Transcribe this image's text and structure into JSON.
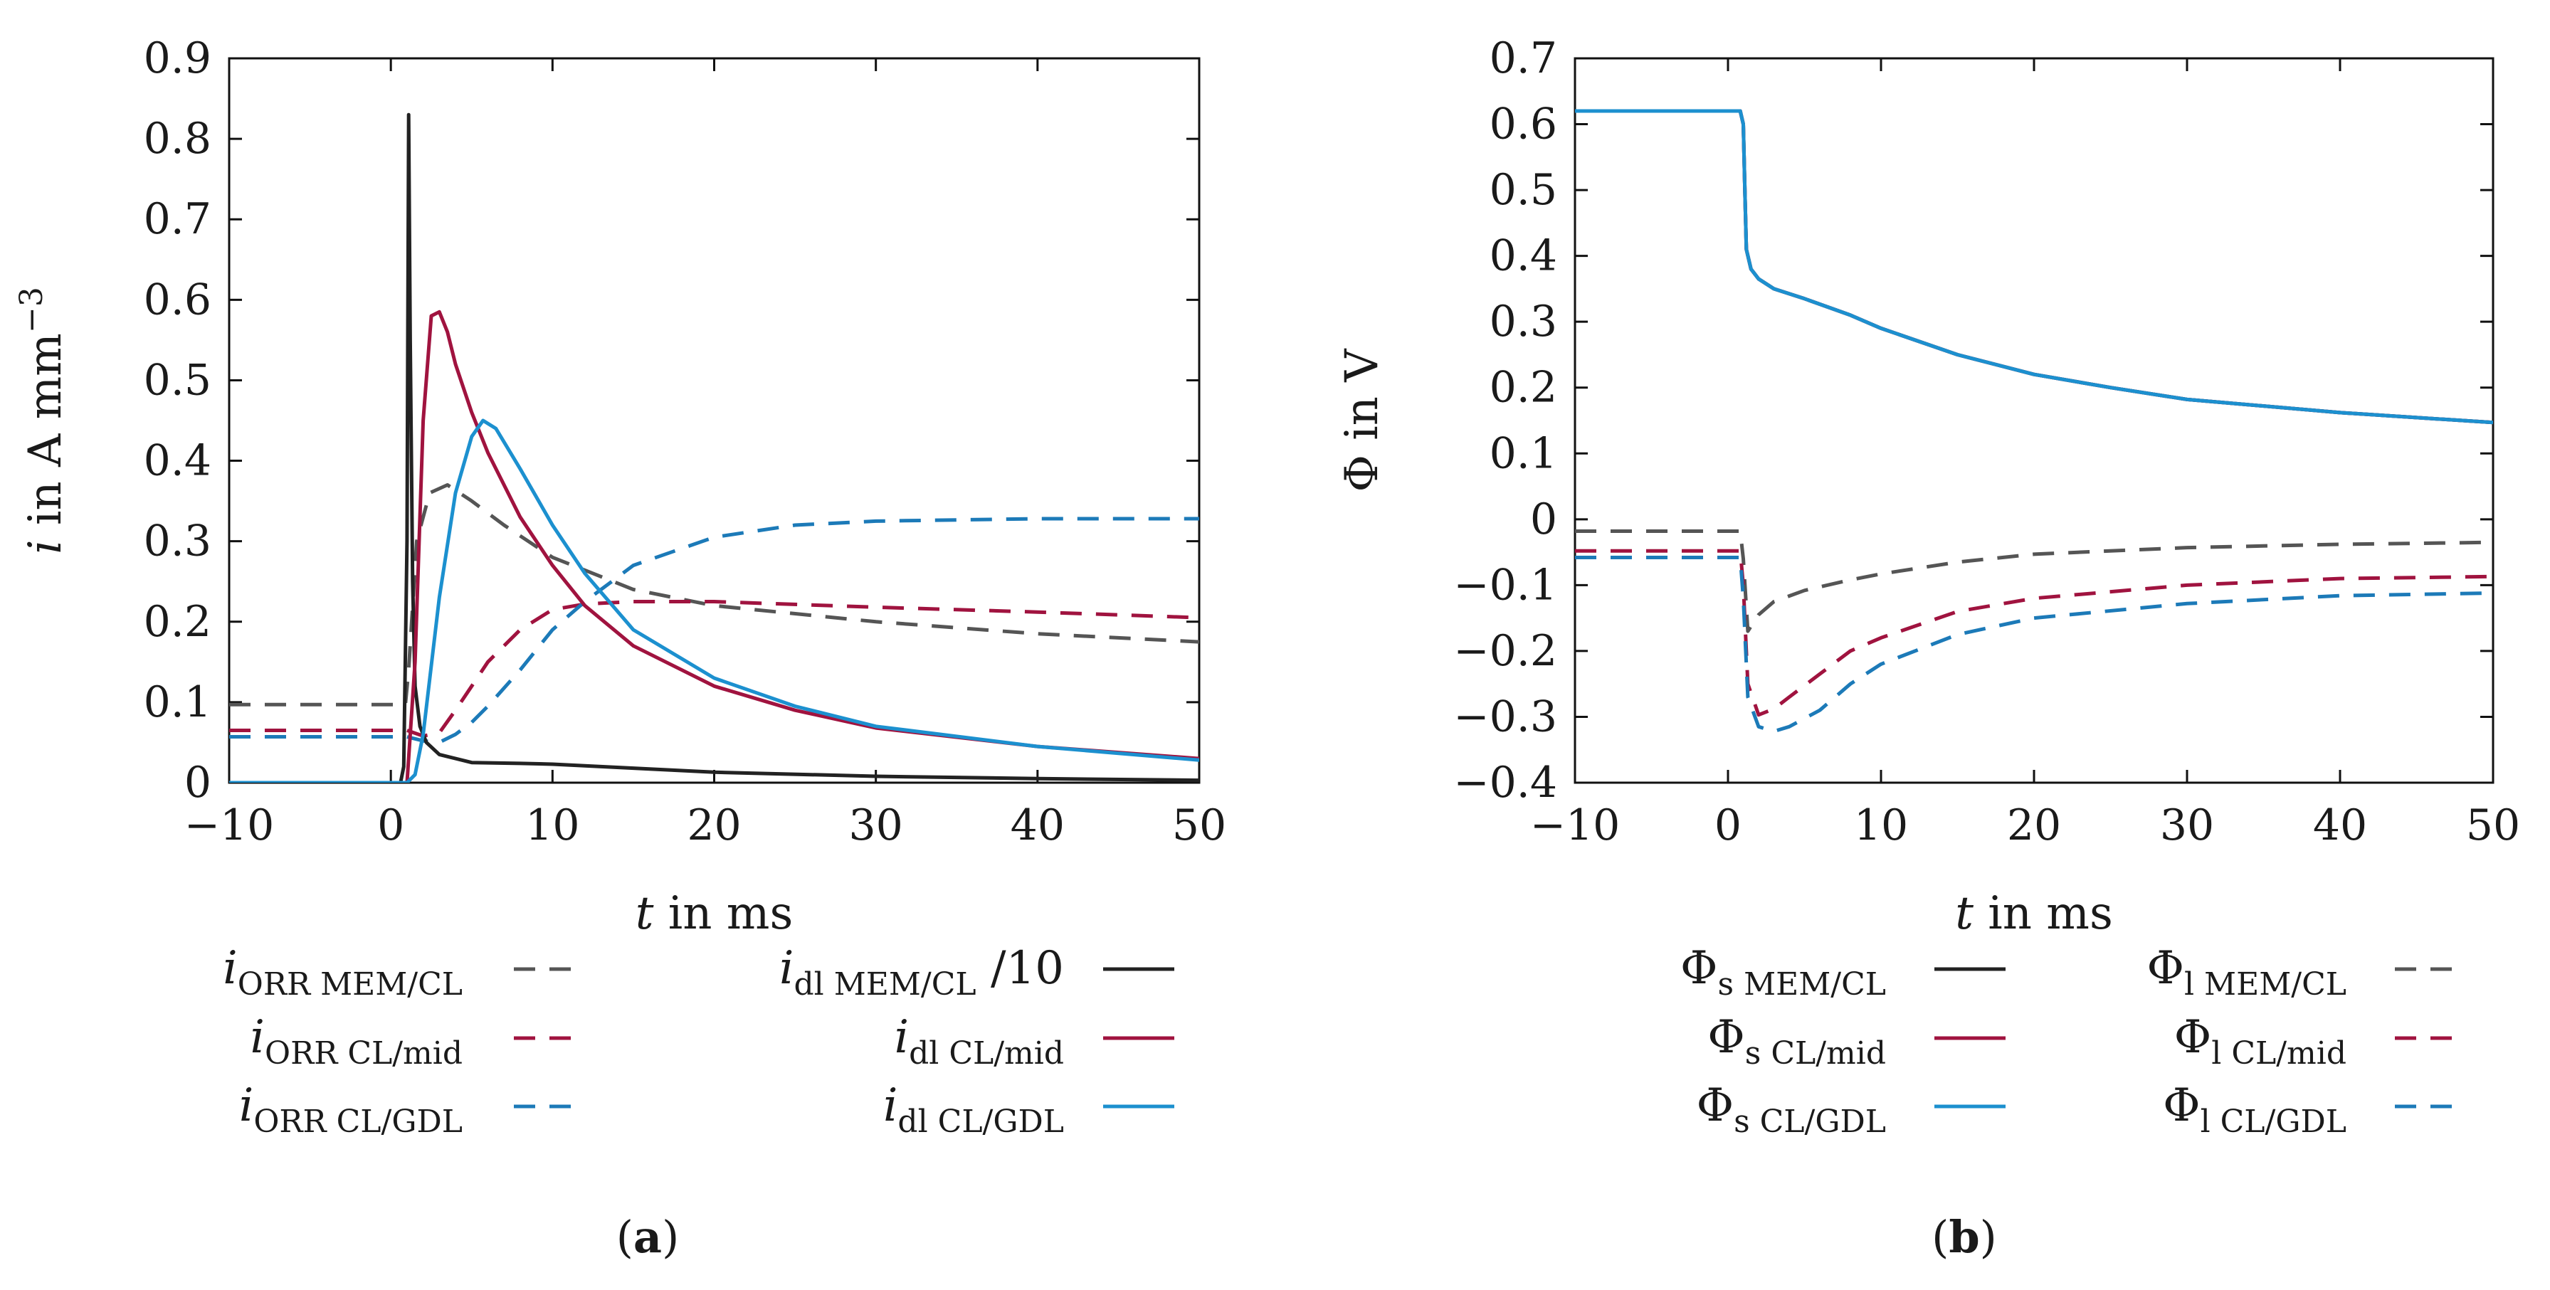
{
  "chart_data": [
    {
      "panel": "a",
      "caption": "(a)",
      "type": "line",
      "xlabel": {
        "var": "t",
        "rest": " in ms"
      },
      "ylabel": {
        "var": "i",
        "rest": " in A mm",
        "sup": "−3"
      },
      "xlim": [
        -10,
        50
      ],
      "ylim": [
        0,
        0.9
      ],
      "xticks": [
        "−10",
        "0",
        "10",
        "20",
        "30",
        "40",
        "50"
      ],
      "xtick_values": [
        -10,
        0,
        10,
        20,
        30,
        40,
        50
      ],
      "yticks": [
        "0",
        "0.1",
        "0.2",
        "0.3",
        "0.4",
        "0.5",
        "0.6",
        "0.7",
        "0.8",
        "0.9"
      ],
      "ytick_values": [
        0,
        0.1,
        0.2,
        0.3,
        0.4,
        0.5,
        0.6,
        0.7,
        0.8,
        0.9
      ],
      "series": [
        {
          "label": {
            "main": "i",
            "sub": "ORR MEM/CL",
            "suffix": ""
          },
          "color": "#555555",
          "dash": "dashed",
          "x": [
            -10,
            0,
            0.9,
            1.1,
            1.6,
            2.4,
            3.5,
            5,
            7,
            10,
            15,
            20,
            30,
            40,
            50
          ],
          "y": [
            0.097,
            0.097,
            0.097,
            0.14,
            0.3,
            0.36,
            0.37,
            0.35,
            0.32,
            0.28,
            0.24,
            0.22,
            0.2,
            0.185,
            0.175
          ]
        },
        {
          "label": {
            "main": "i",
            "sub": "ORR CL/mid",
            "suffix": ""
          },
          "color": "#a0133f",
          "dash": "dashed",
          "x": [
            -10,
            0,
            1,
            2,
            3,
            4,
            5,
            6,
            8,
            10,
            12,
            15,
            20,
            30,
            40,
            50
          ],
          "y": [
            0.065,
            0.065,
            0.065,
            0.058,
            0.062,
            0.09,
            0.12,
            0.15,
            0.19,
            0.215,
            0.222,
            0.225,
            0.225,
            0.218,
            0.212,
            0.205
          ]
        },
        {
          "label": {
            "main": "i",
            "sub": "ORR CL/GDL",
            "suffix": ""
          },
          "color": "#1c7ab8",
          "dash": "dashed",
          "x": [
            -10,
            0,
            1,
            2,
            3,
            4,
            5,
            6,
            8,
            10,
            12,
            15,
            20,
            25,
            30,
            40,
            50
          ],
          "y": [
            0.057,
            0.057,
            0.057,
            0.052,
            0.05,
            0.06,
            0.075,
            0.095,
            0.14,
            0.19,
            0.225,
            0.27,
            0.305,
            0.32,
            0.325,
            0.328,
            0.328
          ]
        },
        {
          "label": {
            "main": "i",
            "sub": "dl MEM/CL",
            "suffix": " /10"
          },
          "color": "#222222",
          "dash": "solid",
          "x": [
            -10,
            0.6,
            0.8,
            1.0,
            1.1,
            1.2,
            1.35,
            1.5,
            1.8,
            2.2,
            3,
            5,
            8,
            10,
            15,
            20,
            30,
            40,
            50
          ],
          "y": [
            0,
            0,
            0.02,
            0.3,
            0.83,
            0.55,
            0.25,
            0.12,
            0.07,
            0.05,
            0.035,
            0.025,
            0.024,
            0.023,
            0.018,
            0.013,
            0.008,
            0.005,
            0.003
          ]
        },
        {
          "label": {
            "main": "i",
            "sub": "dl CL/mid",
            "suffix": ""
          },
          "color": "#a0133f",
          "dash": "solid",
          "x": [
            -10,
            1,
            1.5,
            2,
            2.5,
            3,
            3.5,
            4,
            5,
            6,
            8,
            10,
            12,
            15,
            20,
            25,
            30,
            40,
            50
          ],
          "y": [
            0,
            0,
            0.15,
            0.45,
            0.58,
            0.585,
            0.56,
            0.52,
            0.46,
            0.41,
            0.33,
            0.27,
            0.22,
            0.17,
            0.12,
            0.09,
            0.068,
            0.045,
            0.03
          ]
        },
        {
          "label": {
            "main": "i",
            "sub": "dl CL/GDL",
            "suffix": ""
          },
          "color": "#1c90cf",
          "dash": "solid",
          "x": [
            -10,
            1,
            1.5,
            2,
            3,
            4,
            5,
            5.7,
            6.5,
            8,
            10,
            12,
            15,
            20,
            25,
            30,
            40,
            50
          ],
          "y": [
            0,
            0,
            0.01,
            0.06,
            0.23,
            0.36,
            0.43,
            0.45,
            0.44,
            0.39,
            0.32,
            0.26,
            0.19,
            0.13,
            0.095,
            0.07,
            0.045,
            0.028
          ]
        }
      ]
    },
    {
      "panel": "b",
      "caption": "(b)",
      "type": "line",
      "xlabel": {
        "var": "t",
        "rest": " in ms"
      },
      "ylabel": {
        "var": "Φ",
        "rest": " in V",
        "sup": ""
      },
      "xlim": [
        -10,
        50
      ],
      "ylim": [
        -0.4,
        0.7
      ],
      "xticks": [
        "−10",
        "0",
        "10",
        "20",
        "30",
        "40",
        "50"
      ],
      "xtick_values": [
        -10,
        0,
        10,
        20,
        30,
        40,
        50
      ],
      "yticks": [
        "−0.4",
        "−0.3",
        "−0.2",
        "−0.1",
        "0",
        "0.1",
        "0.2",
        "0.3",
        "0.4",
        "0.5",
        "0.6",
        "0.7"
      ],
      "ytick_values": [
        -0.4,
        -0.3,
        -0.2,
        -0.1,
        0,
        0.1,
        0.2,
        0.3,
        0.4,
        0.5,
        0.6,
        0.7
      ],
      "series": [
        {
          "label": {
            "main": "Φ",
            "sub": "s MEM/CL",
            "suffix": ""
          },
          "color": "#222222",
          "dash": "solid",
          "x": [
            -10,
            0.8,
            1.0,
            1.1,
            1.2,
            1.5,
            2,
            3,
            5,
            8,
            10,
            15,
            20,
            25,
            30,
            40,
            50
          ],
          "y": [
            0.62,
            0.62,
            0.6,
            0.5,
            0.41,
            0.38,
            0.365,
            0.35,
            0.335,
            0.31,
            0.29,
            0.25,
            0.22,
            0.2,
            0.182,
            0.162,
            0.147
          ]
        },
        {
          "label": {
            "main": "Φ",
            "sub": "s CL/mid",
            "suffix": ""
          },
          "color": "#a0133f",
          "dash": "solid",
          "x": [
            -10,
            0.8,
            1.0,
            1.1,
            1.2,
            1.5,
            2,
            3,
            5,
            8,
            10,
            15,
            20,
            25,
            30,
            40,
            50
          ],
          "y": [
            0.62,
            0.62,
            0.6,
            0.5,
            0.41,
            0.38,
            0.365,
            0.35,
            0.335,
            0.31,
            0.29,
            0.25,
            0.22,
            0.2,
            0.182,
            0.162,
            0.147
          ]
        },
        {
          "label": {
            "main": "Φ",
            "sub": "s CL/GDL",
            "suffix": ""
          },
          "color": "#1c90cf",
          "dash": "solid",
          "x": [
            -10,
            0.8,
            1.0,
            1.1,
            1.2,
            1.5,
            2,
            3,
            5,
            8,
            10,
            15,
            20,
            25,
            30,
            40,
            50
          ],
          "y": [
            0.62,
            0.62,
            0.6,
            0.5,
            0.41,
            0.38,
            0.365,
            0.35,
            0.335,
            0.31,
            0.29,
            0.25,
            0.22,
            0.2,
            0.182,
            0.162,
            0.147
          ]
        },
        {
          "label": {
            "main": "Φ",
            "sub": "l MEM/CL",
            "suffix": ""
          },
          "color": "#555555",
          "dash": "dashed",
          "x": [
            -10,
            0.8,
            1.0,
            1.3,
            2,
            3,
            5,
            8,
            10,
            15,
            20,
            30,
            40,
            50
          ],
          "y": [
            -0.018,
            -0.018,
            -0.06,
            -0.17,
            -0.145,
            -0.125,
            -0.108,
            -0.092,
            -0.083,
            -0.065,
            -0.053,
            -0.043,
            -0.038,
            -0.035
          ]
        },
        {
          "label": {
            "main": "Φ",
            "sub": "l CL/mid",
            "suffix": ""
          },
          "color": "#a0133f",
          "dash": "dashed",
          "x": [
            -10,
            0.8,
            1.0,
            1.3,
            2,
            3,
            4,
            6,
            8,
            10,
            15,
            20,
            30,
            40,
            50
          ],
          "y": [
            -0.048,
            -0.048,
            -0.1,
            -0.25,
            -0.297,
            -0.288,
            -0.27,
            -0.235,
            -0.2,
            -0.18,
            -0.14,
            -0.12,
            -0.1,
            -0.09,
            -0.087
          ]
        },
        {
          "label": {
            "main": "Φ",
            "sub": "l CL/GDL",
            "suffix": ""
          },
          "color": "#1c7ab8",
          "dash": "dashed",
          "x": [
            -10,
            0.8,
            1.0,
            1.3,
            2,
            3,
            4,
            6,
            8,
            10,
            15,
            20,
            30,
            40,
            50
          ],
          "y": [
            -0.058,
            -0.058,
            -0.12,
            -0.27,
            -0.315,
            -0.322,
            -0.315,
            -0.29,
            -0.25,
            -0.22,
            -0.175,
            -0.15,
            -0.128,
            -0.116,
            -0.112
          ]
        }
      ]
    }
  ]
}
